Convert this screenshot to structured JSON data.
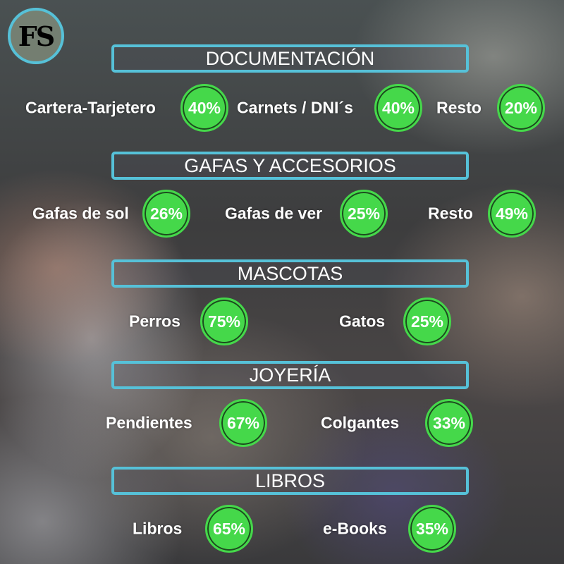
{
  "logo": "FS",
  "colors": {
    "accent": "#56c1d8",
    "badge": "#45d84a"
  },
  "sections": [
    {
      "title": "DOCUMENTACIÓN",
      "items": [
        {
          "label": "Cartera-Tarjetero",
          "value": "40%"
        },
        {
          "label": "Carnets / DNI´s",
          "value": "40%"
        },
        {
          "label": "Resto",
          "value": "20%"
        }
      ]
    },
    {
      "title": "GAFAS Y ACCESORIOS",
      "items": [
        {
          "label": "Gafas de sol",
          "value": "26%"
        },
        {
          "label": "Gafas de ver",
          "value": "25%"
        },
        {
          "label": "Resto",
          "value": "49%"
        }
      ]
    },
    {
      "title": "MASCOTAS",
      "items": [
        {
          "label": "Perros",
          "value": "75%"
        },
        {
          "label": "Gatos",
          "value": "25%"
        }
      ]
    },
    {
      "title": "JOYERÍA",
      "items": [
        {
          "label": "Pendientes",
          "value": "67%"
        },
        {
          "label": "Colgantes",
          "value": "33%"
        }
      ]
    },
    {
      "title": "LIBROS",
      "items": [
        {
          "label": "Libros",
          "value": "65%"
        },
        {
          "label": "e-Books",
          "value": "35%"
        }
      ]
    }
  ]
}
